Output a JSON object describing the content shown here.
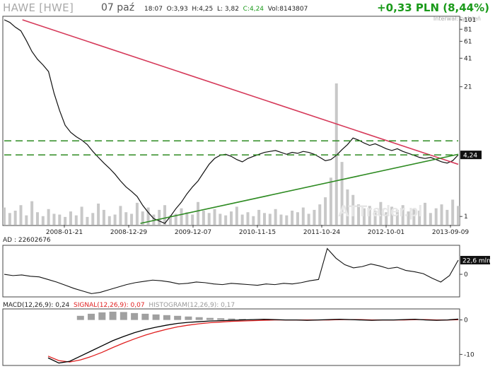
{
  "header": {
    "ticker": "HAWE [HWE]",
    "date": "07 paź",
    "time": "18:07",
    "open": "O:3,93",
    "high": "H:4,25",
    "low": "L: 3,82",
    "close": "C:4,24",
    "volume": "Vol:8143807",
    "change": "+0,33 PLN (8,44%)",
    "interval": "Interwał: tydzień",
    "watermark": "ATTrader.pl"
  },
  "chart_data": [
    {
      "type": "line",
      "panel": "price",
      "scale": "log",
      "x_ticks": [
        "2008-01-21",
        "2008-12-29",
        "2009-12-07",
        "2010-11-15",
        "2011-10-24",
        "2012-10-01",
        "2013-09-09"
      ],
      "y_ticks": [
        "101",
        "81",
        "61",
        "41",
        "21",
        "1"
      ],
      "last_value_label": "4,24",
      "series": [
        {
          "values": [
            101,
            95,
            85,
            78,
            62,
            48,
            40,
            35,
            30,
            18,
            12,
            8.5,
            7.2,
            6.5,
            6.0,
            5.4,
            4.6,
            4.0,
            3.5,
            3.1,
            2.7,
            2.3,
            2.0,
            1.8,
            1.6,
            1.3,
            1.1,
            0.95,
            0.9,
            0.85,
            1.0,
            1.2,
            1.4,
            1.7,
            2.0,
            2.3,
            2.8,
            3.4,
            3.9,
            4.2,
            4.3,
            4.1,
            3.8,
            3.6,
            3.9,
            4.1,
            4.3,
            4.5,
            4.6,
            4.7,
            4.5,
            4.3,
            4.5,
            4.4,
            4.6,
            4.5,
            4.3,
            4.0,
            3.7,
            3.8,
            4.2,
            4.8,
            5.4,
            6.3,
            6.0,
            5.6,
            5.3,
            5.5,
            5.2,
            4.9,
            4.7,
            4.9,
            4.6,
            4.4,
            4.2,
            4.0,
            3.9,
            4.0,
            3.8,
            3.6,
            3.5,
            3.7,
            4.24
          ]
        }
      ],
      "volume": [
        2.2,
        1.5,
        1.8,
        2.5,
        1.2,
        3.0,
        1.6,
        1.1,
        2.0,
        1.4,
        1.3,
        1.0,
        1.7,
        1.2,
        2.3,
        1.0,
        1.5,
        2.7,
        1.9,
        1.1,
        1.3,
        2.4,
        1.6,
        1.4,
        2.8,
        1.7,
        2.2,
        1.3,
        1.9,
        2.5,
        1.2,
        1.4,
        2.1,
        1.6,
        1.3,
        2.9,
        1.8,
        1.5,
        2.0,
        1.4,
        1.2,
        1.7,
        2.3,
        1.3,
        1.6,
        1.1,
        1.9,
        1.5,
        1.4,
        2.0,
        1.3,
        1.2,
        1.8,
        1.6,
        2.2,
        1.4,
        1.9,
        2.6,
        3.5,
        6.0,
        18.0,
        8.0,
        4.5,
        3.8,
        2.6,
        2.1,
        2.4,
        1.8,
        2.9,
        1.6,
        2.3,
        1.9,
        2.5,
        1.7,
        2.0,
        1.8,
        2.8,
        1.5,
        2.1,
        2.6,
        1.9,
        3.2,
        2.4
      ],
      "lines": [
        {
          "name": "downtrend",
          "color": "#d63a5a",
          "from": [
            0.04,
            101
          ],
          "to": [
            1.0,
            3.4
          ]
        },
        {
          "name": "uptrend",
          "color": "#2e8b22",
          "from": [
            0.3,
            0.85
          ],
          "to": [
            1.0,
            4.3
          ]
        },
        {
          "name": "resistance",
          "color": "#2e8b22",
          "style": "dashed",
          "level": 5.9
        },
        {
          "name": "support",
          "color": "#2e8b22",
          "style": "dashed",
          "level": 4.24
        }
      ]
    },
    {
      "type": "line",
      "panel": "AD",
      "title": "AD : 22602676",
      "last_value_label": "22,6 mln",
      "y_ticks": [
        "0"
      ],
      "series": [
        {
          "values": [
            0.0,
            -0.2,
            -0.1,
            -0.3,
            -0.4,
            -0.8,
            -1.2,
            -1.7,
            -2.2,
            -2.6,
            -3.0,
            -2.8,
            -2.4,
            -2.0,
            -1.6,
            -1.3,
            -1.1,
            -0.9,
            -1.0,
            -1.2,
            -1.5,
            -1.4,
            -1.2,
            -1.3,
            -1.5,
            -1.6,
            -1.4,
            -1.5,
            -1.6,
            -1.7,
            -1.5,
            -1.6,
            -1.4,
            -1.5,
            -1.3,
            -1.0,
            -0.8,
            4.0,
            2.5,
            1.5,
            1.0,
            1.2,
            1.6,
            1.3,
            0.9,
            1.1,
            0.6,
            0.4,
            0.1,
            -0.6,
            -1.2,
            -0.2,
            2.2
          ]
        }
      ]
    },
    {
      "type": "line",
      "panel": "MACD",
      "title": "MACD(12,26,9): 0,24",
      "signal_label": "SIGNAL(12,26,9): 0,07",
      "histogram_label": "HISTOGRAM(12,26,9): 0,17",
      "y_ticks": [
        "0",
        "-10"
      ],
      "colors": {
        "macd": "#000000",
        "signal": "#e02020",
        "histogram": "#a0a0a0"
      },
      "series": [
        {
          "name": "MACD",
          "values": [
            -11,
            -12.5,
            -12.0,
            -10.5,
            -9.0,
            -7.5,
            -6.0,
            -4.8,
            -3.7,
            -2.8,
            -2.1,
            -1.5,
            -1.0,
            -0.7,
            -0.5,
            -0.3,
            -0.2,
            -0.1,
            0.0,
            0.1,
            0.2,
            0.1,
            0.0,
            0.0,
            -0.1,
            0.0,
            0.1,
            0.2,
            0.1,
            0.0,
            -0.1,
            0.0,
            0.0,
            0.1,
            0.2,
            0.0,
            -0.1,
            0.0,
            0.24
          ]
        },
        {
          "name": "SIGNAL",
          "values": [
            -10.5,
            -11.8,
            -12.2,
            -11.6,
            -10.6,
            -9.4,
            -8.0,
            -6.7,
            -5.5,
            -4.4,
            -3.5,
            -2.7,
            -2.0,
            -1.5,
            -1.1,
            -0.8,
            -0.6,
            -0.4,
            -0.3,
            -0.2,
            -0.1,
            0.0,
            0.0,
            0.0,
            0.0,
            0.0,
            0.0,
            0.1,
            0.1,
            0.1,
            0.0,
            0.0,
            0.0,
            0.0,
            0.1,
            0.1,
            0.0,
            0.0,
            0.07
          ]
        },
        {
          "name": "HISTOGRAM",
          "values": [
            0,
            0,
            0,
            1.2,
            1.8,
            2.2,
            2.4,
            2.3,
            2.0,
            1.8,
            1.6,
            1.4,
            1.2,
            1.0,
            0.8,
            0.6,
            0.5,
            0.4,
            0.3,
            0.2,
            0.2,
            0.1,
            0.1,
            0.0,
            0.0,
            0.0,
            0.1,
            0.1,
            0.0,
            0.0,
            0.0,
            0.0,
            0.0,
            0.1,
            0.1,
            0.0,
            0.0,
            0.0,
            0.17
          ]
        }
      ]
    }
  ]
}
